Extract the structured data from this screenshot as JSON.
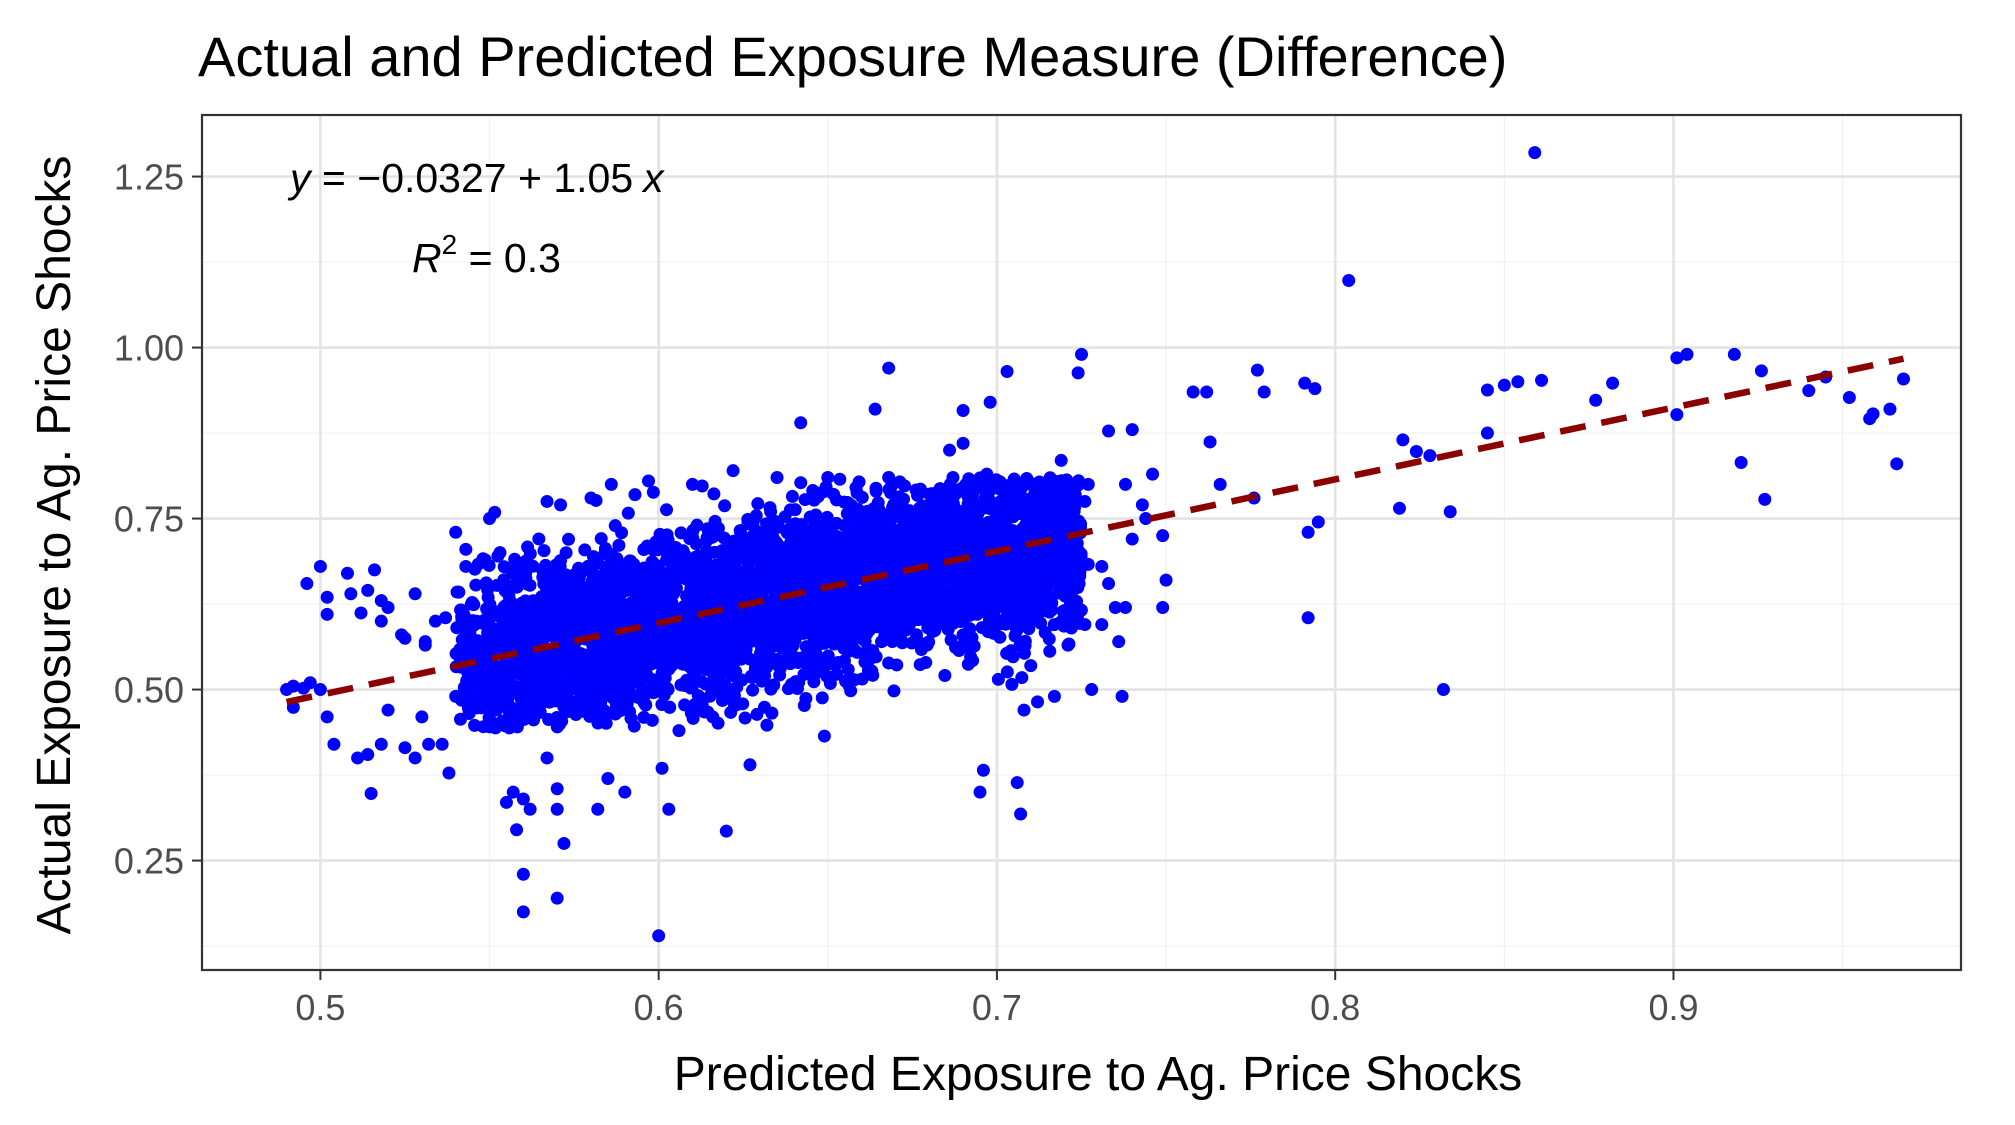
{
  "chart_data": {
    "type": "scatter",
    "title": "Actual and Predicted Exposure Measure (Difference)",
    "xlabel": "Predicted Exposure to Ag. Price Shocks",
    "ylabel": "Actual Exposure to Ag. Price Shocks",
    "xlim": [
      0.465,
      0.985
    ],
    "ylim": [
      0.09,
      1.34
    ],
    "x_ticks": [
      0.5,
      0.6,
      0.7,
      0.8,
      0.9
    ],
    "x_tick_labels": [
      "0.5",
      "0.6",
      "0.7",
      "0.8",
      "0.9"
    ],
    "y_ticks": [
      0.25,
      0.5,
      0.75,
      1.0,
      1.25
    ],
    "y_tick_labels": [
      "0.25",
      "0.50",
      "0.75",
      "1.00",
      "1.25"
    ],
    "grid": true,
    "theme": "bw",
    "point_color": "#0000ff",
    "trend_color": "#8b0000",
    "trend_line": {
      "intercept": -0.0327,
      "slope": 1.05,
      "x_range": [
        0.49,
        0.968
      ],
      "style": "dashed"
    },
    "annotations": {
      "equation": {
        "y": "y",
        "eq": " = ",
        "minus": "−",
        "intercept": "0.0327",
        "plus": " + ",
        "slope": "1.05",
        "x": "x"
      },
      "r2": {
        "r": "R",
        "sup": "2",
        "eq": " = 0.3"
      }
    },
    "series": [
      {
        "points": [
          [
            0.859,
            1.285
          ],
          [
            0.804,
            1.098
          ],
          [
            0.725,
            0.99
          ],
          [
            0.668,
            0.97
          ],
          [
            0.703,
            0.965
          ],
          [
            0.724,
            0.963
          ],
          [
            0.777,
            0.967
          ],
          [
            0.791,
            0.948
          ],
          [
            0.794,
            0.94
          ],
          [
            0.758,
            0.935
          ],
          [
            0.762,
            0.935
          ],
          [
            0.779,
            0.935
          ],
          [
            0.69,
            0.908
          ],
          [
            0.698,
            0.92
          ],
          [
            0.664,
            0.91
          ],
          [
            0.642,
            0.89
          ],
          [
            0.733,
            0.878
          ],
          [
            0.74,
            0.88
          ],
          [
            0.763,
            0.862
          ],
          [
            0.686,
            0.85
          ],
          [
            0.69,
            0.86
          ],
          [
            0.719,
            0.835
          ],
          [
            0.727,
            0.8
          ],
          [
            0.738,
            0.8
          ],
          [
            0.766,
            0.8
          ],
          [
            0.743,
            0.77
          ],
          [
            0.726,
            0.775
          ],
          [
            0.776,
            0.78
          ],
          [
            0.792,
            0.73
          ],
          [
            0.795,
            0.745
          ],
          [
            0.746,
            0.815
          ],
          [
            0.749,
            0.725
          ],
          [
            0.744,
            0.75
          ],
          [
            0.74,
            0.72
          ],
          [
            0.75,
            0.66
          ],
          [
            0.749,
            0.62
          ],
          [
            0.792,
            0.605
          ],
          [
            0.727,
            0.683
          ],
          [
            0.731,
            0.68
          ],
          [
            0.733,
            0.655
          ],
          [
            0.735,
            0.62
          ],
          [
            0.738,
            0.62
          ],
          [
            0.726,
            0.595
          ],
          [
            0.731,
            0.595
          ],
          [
            0.736,
            0.57
          ],
          [
            0.728,
            0.5
          ],
          [
            0.737,
            0.49
          ],
          [
            0.832,
            0.5
          ],
          [
            0.82,
            0.865
          ],
          [
            0.824,
            0.848
          ],
          [
            0.828,
            0.842
          ],
          [
            0.819,
            0.765
          ],
          [
            0.834,
            0.76
          ],
          [
            0.845,
            0.938
          ],
          [
            0.85,
            0.945
          ],
          [
            0.854,
            0.95
          ],
          [
            0.861,
            0.952
          ],
          [
            0.845,
            0.875
          ],
          [
            0.877,
            0.923
          ],
          [
            0.882,
            0.948
          ],
          [
            0.901,
            0.985
          ],
          [
            0.904,
            0.99
          ],
          [
            0.918,
            0.99
          ],
          [
            0.901,
            0.902
          ],
          [
            0.92,
            0.832
          ],
          [
            0.926,
            0.966
          ],
          [
            0.927,
            0.778
          ],
          [
            0.94,
            0.937
          ],
          [
            0.945,
            0.957
          ],
          [
            0.952,
            0.927
          ],
          [
            0.958,
            0.896
          ],
          [
            0.959,
            0.903
          ],
          [
            0.964,
            0.91
          ],
          [
            0.966,
            0.83
          ],
          [
            0.968,
            0.954
          ],
          [
            0.49,
            0.5
          ],
          [
            0.492,
            0.505
          ],
          [
            0.495,
            0.502
          ],
          [
            0.497,
            0.51
          ],
          [
            0.5,
            0.5
          ],
          [
            0.492,
            0.474
          ],
          [
            0.496,
            0.655
          ],
          [
            0.5,
            0.68
          ],
          [
            0.502,
            0.635
          ],
          [
            0.502,
            0.61
          ],
          [
            0.504,
            0.42
          ],
          [
            0.502,
            0.46
          ],
          [
            0.508,
            0.67
          ],
          [
            0.509,
            0.64
          ],
          [
            0.512,
            0.612
          ],
          [
            0.514,
            0.645
          ],
          [
            0.516,
            0.675
          ],
          [
            0.518,
            0.6
          ],
          [
            0.518,
            0.63
          ],
          [
            0.52,
            0.62
          ],
          [
            0.524,
            0.58
          ],
          [
            0.525,
            0.575
          ],
          [
            0.528,
            0.64
          ],
          [
            0.531,
            0.565
          ],
          [
            0.531,
            0.57
          ],
          [
            0.534,
            0.6
          ],
          [
            0.537,
            0.605
          ],
          [
            0.54,
            0.73
          ],
          [
            0.543,
            0.68
          ],
          [
            0.543,
            0.705
          ],
          [
            0.514,
            0.405
          ],
          [
            0.511,
            0.4
          ],
          [
            0.515,
            0.348
          ],
          [
            0.518,
            0.42
          ],
          [
            0.52,
            0.47
          ],
          [
            0.525,
            0.415
          ],
          [
            0.528,
            0.4
          ],
          [
            0.53,
            0.46
          ],
          [
            0.532,
            0.42
          ],
          [
            0.536,
            0.42
          ],
          [
            0.538,
            0.378
          ],
          [
            0.54,
            0.49
          ],
          [
            0.555,
            0.335
          ],
          [
            0.557,
            0.35
          ],
          [
            0.56,
            0.34
          ],
          [
            0.562,
            0.325
          ],
          [
            0.558,
            0.295
          ],
          [
            0.56,
            0.23
          ],
          [
            0.56,
            0.175
          ],
          [
            0.57,
            0.195
          ],
          [
            0.57,
            0.325
          ],
          [
            0.57,
            0.355
          ],
          [
            0.572,
            0.275
          ],
          [
            0.567,
            0.4
          ],
          [
            0.582,
            0.325
          ],
          [
            0.585,
            0.37
          ],
          [
            0.59,
            0.35
          ],
          [
            0.6,
            0.14
          ],
          [
            0.601,
            0.385
          ],
          [
            0.603,
            0.325
          ],
          [
            0.62,
            0.293
          ],
          [
            0.627,
            0.39
          ],
          [
            0.606,
            0.44
          ],
          [
            0.616,
            0.46
          ],
          [
            0.632,
            0.448
          ],
          [
            0.649,
            0.432
          ],
          [
            0.695,
            0.35
          ],
          [
            0.696,
            0.382
          ],
          [
            0.706,
            0.364
          ],
          [
            0.707,
            0.318
          ],
          [
            0.708,
            0.47
          ],
          [
            0.712,
            0.482
          ],
          [
            0.71,
            0.535
          ],
          [
            0.717,
            0.49
          ],
          [
            0.72,
            0.605
          ],
          [
            0.722,
            0.59
          ],
          [
            0.721,
            0.565
          ],
          [
            0.716,
            0.63
          ],
          [
            0.55,
            0.75
          ],
          [
            0.567,
            0.775
          ],
          [
            0.571,
            0.77
          ],
          [
            0.58,
            0.78
          ],
          [
            0.586,
            0.8
          ],
          [
            0.593,
            0.785
          ],
          [
            0.597,
            0.805
          ],
          [
            0.61,
            0.8
          ],
          [
            0.622,
            0.82
          ],
          [
            0.635,
            0.81
          ],
          [
            0.65,
            0.81
          ],
          [
            0.668,
            0.81
          ],
          [
            0.687,
            0.81
          ],
          [
            0.697,
            0.815
          ],
          [
            0.71,
            0.8
          ]
        ],
        "dense_cluster": {
          "x_range": [
            0.54,
            0.725
          ],
          "y_range": [
            0.44,
            0.81
          ],
          "trend": {
            "intercept": -0.0327,
            "slope": 1.05
          },
          "spread_sd": 0.062,
          "count": 4200
        }
      }
    ]
  }
}
